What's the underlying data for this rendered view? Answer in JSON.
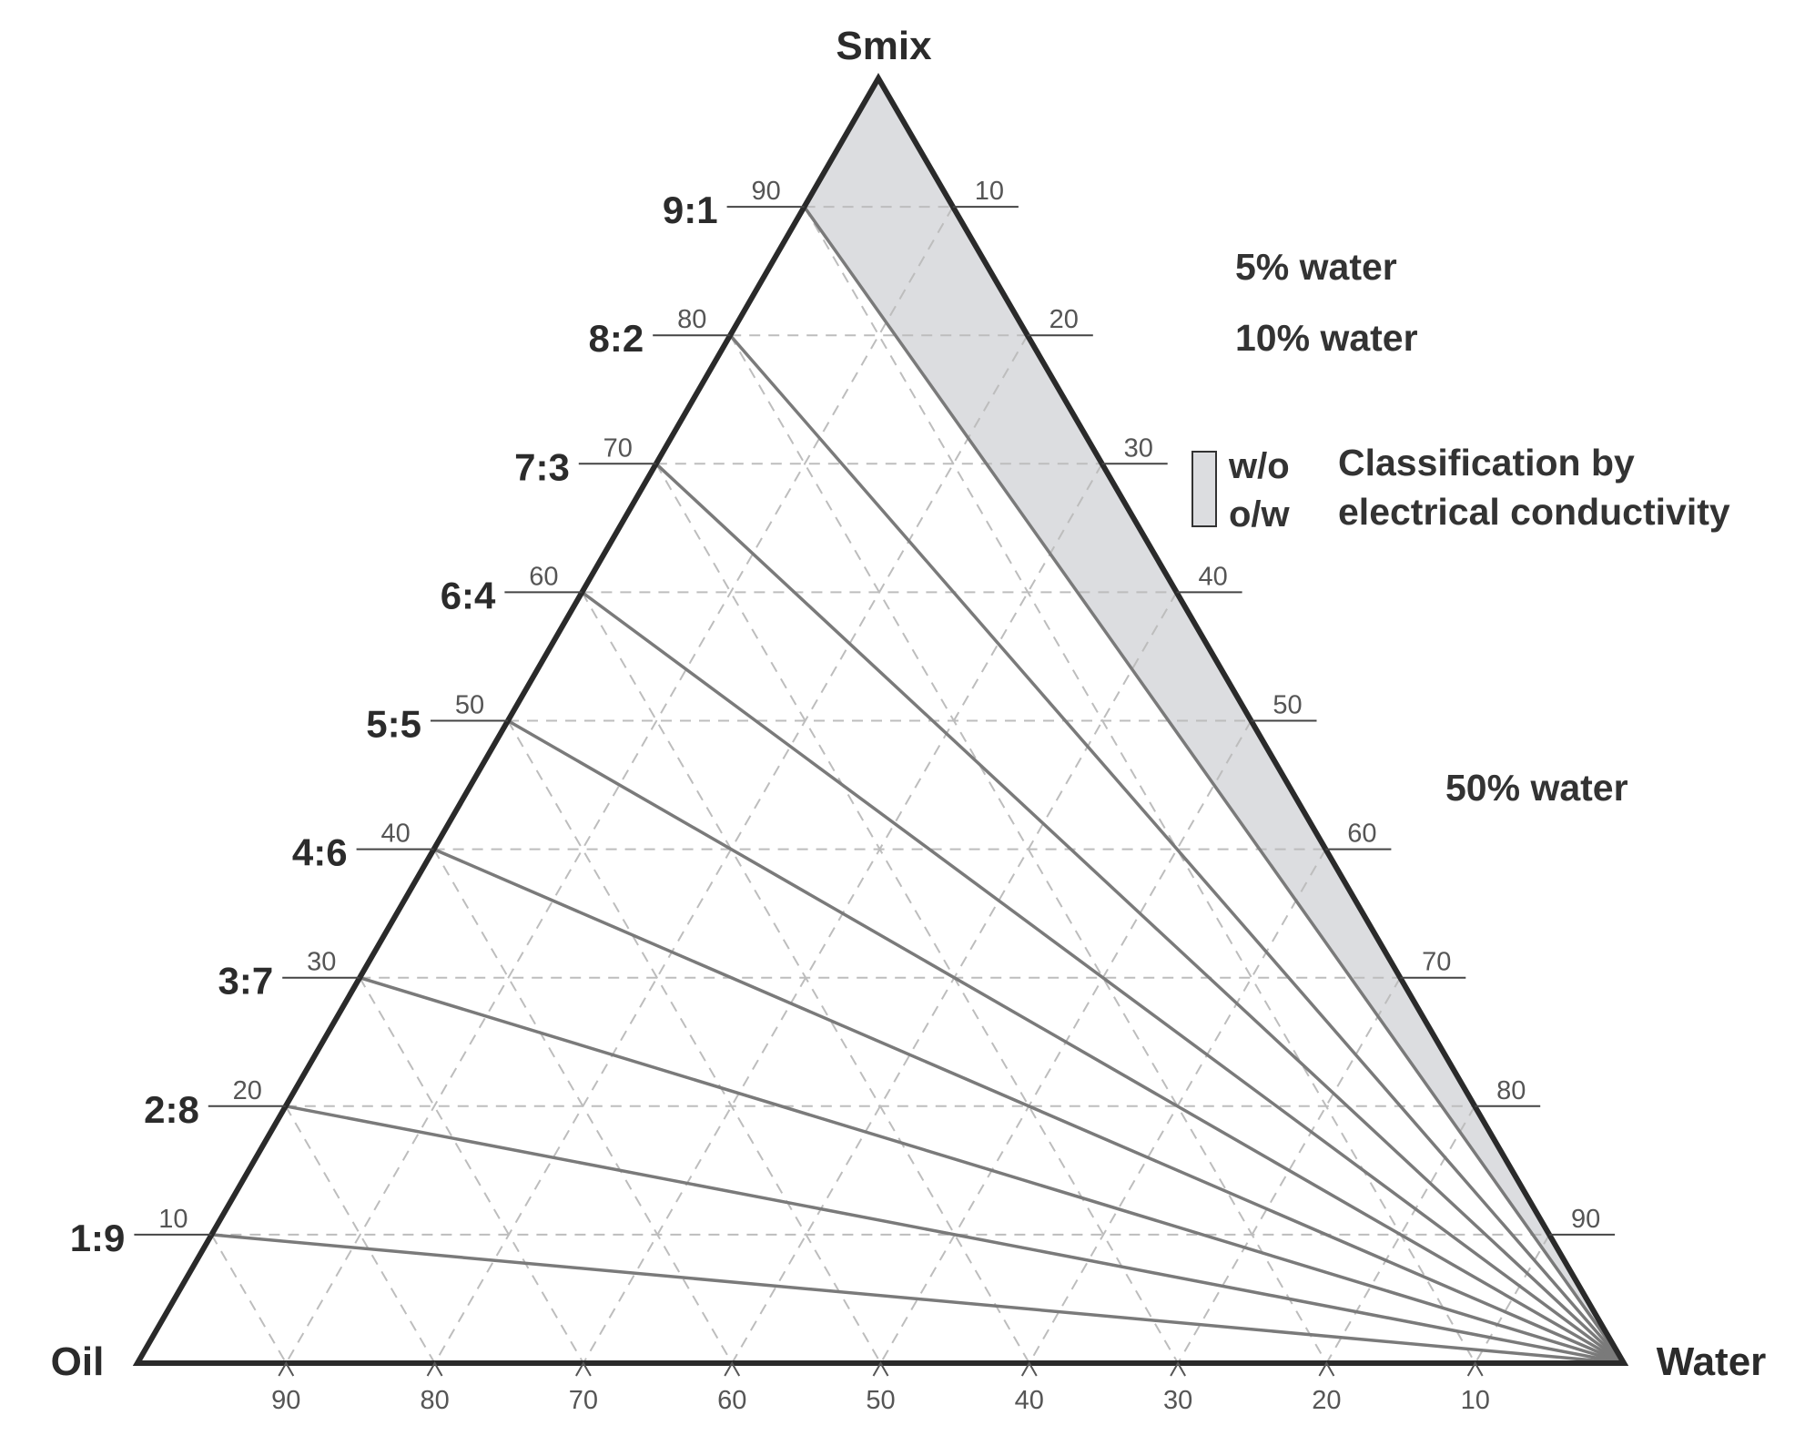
{
  "diagram": {
    "type": "ternary_phase_diagram",
    "vertices": {
      "top": "Smix",
      "bottom_left": "Oil",
      "bottom_right": "Water"
    },
    "smix_oil_ratio_lines": [
      "9:1",
      "8:2",
      "7:3",
      "6:4",
      "5:5",
      "4:6",
      "3:7",
      "2:8",
      "1:9"
    ],
    "left_axis_ticks": [
      "90",
      "80",
      "70",
      "60",
      "50",
      "40",
      "30",
      "20",
      "10"
    ],
    "right_axis_ticks": [
      "10",
      "20",
      "30",
      "40",
      "50",
      "60",
      "70",
      "80",
      "90"
    ],
    "bottom_axis_ticks": [
      "90",
      "80",
      "70",
      "60",
      "50",
      "40",
      "30",
      "20",
      "10"
    ],
    "annotations": [
      "5% water",
      "10% water",
      "50% water"
    ],
    "legend": {
      "symbol_top": "w/o",
      "symbol_bottom": "o/w",
      "text_line1": "Classification by",
      "text_line2": "electrical conductivity"
    },
    "shaded_region": {
      "between_ratio": "9:1",
      "and_edge": "Smix-Water",
      "fill": "#dcdde0"
    },
    "colors": {
      "frame": "#2a2a2a",
      "dilution_lines": "#7a7a7a",
      "grid": "#bdbdbd",
      "shade": "#dcdde0"
    }
  }
}
